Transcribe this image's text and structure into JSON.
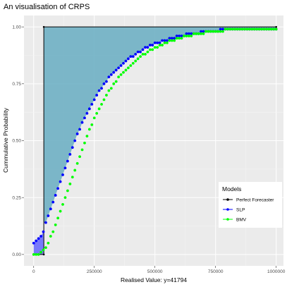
{
  "chart_data": {
    "type": "line",
    "title": "An visualisation of CRPS",
    "xlabel": "Realised Value: y=41794",
    "ylabel": "Cummulative Probability",
    "xlim": [
      -40000,
      1030000
    ],
    "ylim": [
      -0.05,
      1.05
    ],
    "x_ticks": [
      0,
      250000,
      500000,
      750000,
      1000000
    ],
    "x_tick_labels": [
      "0",
      "250000",
      "500000",
      "750000",
      "1000000"
    ],
    "y_ticks": [
      0,
      0.25,
      0.5,
      0.75,
      1
    ],
    "y_tick_labels": [
      "0.00",
      "0.25",
      "0.50",
      "0.75",
      "1.00"
    ],
    "grid": true,
    "realised_value": 41794,
    "legend": {
      "title": "Models",
      "placement": "right",
      "entries": [
        "Perfect Forecaster",
        "SLP",
        "BMV"
      ]
    },
    "series": [
      {
        "name": "Perfect Forecaster",
        "color": "#000000",
        "x": [
          0,
          41794,
          41794,
          1000000
        ],
        "values": [
          0,
          0,
          1,
          1
        ]
      },
      {
        "name": "SLP",
        "color": "#0000ff",
        "x_start": 0,
        "x_step": 10000,
        "values": [
          0.05,
          0.06,
          0.07,
          0.08,
          0.1,
          0.14,
          0.17,
          0.2,
          0.23,
          0.26,
          0.29,
          0.32,
          0.35,
          0.38,
          0.41,
          0.44,
          0.47,
          0.5,
          0.53,
          0.55,
          0.58,
          0.6,
          0.62,
          0.64,
          0.66,
          0.68,
          0.7,
          0.72,
          0.73,
          0.75,
          0.76,
          0.78,
          0.79,
          0.8,
          0.81,
          0.82,
          0.83,
          0.84,
          0.85,
          0.86,
          0.87,
          0.87,
          0.88,
          0.89,
          0.89,
          0.9,
          0.91,
          0.91,
          0.92,
          0.92,
          0.93,
          0.93,
          0.93,
          0.94,
          0.94,
          0.94,
          0.95,
          0.95,
          0.95,
          0.96,
          0.96,
          0.96,
          0.96,
          0.97,
          0.97,
          0.97,
          0.97,
          0.97,
          0.97,
          0.98,
          0.98,
          0.98,
          0.98,
          0.98,
          0.98,
          0.98,
          0.98,
          0.99,
          0.99,
          0.99,
          0.99,
          0.99,
          0.99,
          0.99,
          0.99,
          0.99,
          0.99,
          0.99,
          0.99,
          0.99,
          0.99,
          0.99,
          0.99,
          0.99,
          0.99,
          0.99,
          0.99,
          0.99,
          0.99,
          0.99,
          0.99
        ]
      },
      {
        "name": "BMV",
        "color": "#00ff00",
        "x_start": 0,
        "x_step": 10000,
        "values": [
          0.0,
          0.0,
          0.0,
          0.01,
          0.02,
          0.03,
          0.05,
          0.08,
          0.1,
          0.13,
          0.16,
          0.19,
          0.22,
          0.25,
          0.28,
          0.31,
          0.34,
          0.37,
          0.4,
          0.43,
          0.46,
          0.49,
          0.52,
          0.55,
          0.57,
          0.6,
          0.62,
          0.64,
          0.66,
          0.68,
          0.7,
          0.72,
          0.73,
          0.75,
          0.76,
          0.78,
          0.79,
          0.8,
          0.81,
          0.82,
          0.83,
          0.84,
          0.85,
          0.86,
          0.87,
          0.88,
          0.88,
          0.89,
          0.9,
          0.9,
          0.91,
          0.91,
          0.92,
          0.92,
          0.93,
          0.93,
          0.94,
          0.94,
          0.94,
          0.95,
          0.95,
          0.95,
          0.96,
          0.96,
          0.96,
          0.96,
          0.97,
          0.97,
          0.97,
          0.97,
          0.97,
          0.98,
          0.98,
          0.98,
          0.98,
          0.98,
          0.98,
          0.98,
          0.98,
          0.99,
          0.99,
          0.99,
          0.99,
          0.99,
          0.99,
          0.99,
          0.99,
          0.99,
          0.99,
          0.99,
          0.99,
          0.99,
          0.99,
          0.99,
          0.99,
          0.99,
          0.99,
          0.99,
          0.99,
          0.99,
          0.99
        ]
      }
    ],
    "fill_colors": {
      "crps_area": "#6fb0c4",
      "lower_area": "#5b5bff"
    }
  }
}
